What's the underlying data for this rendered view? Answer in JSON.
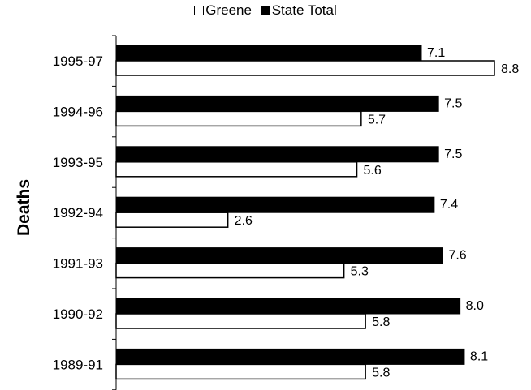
{
  "chart_data": {
    "type": "bar",
    "orientation": "horizontal",
    "categories": [
      "1995-97",
      "1994-96",
      "1993-95",
      "1992-94",
      "1991-93",
      "1990-92",
      "1989-91"
    ],
    "series": [
      {
        "name": "State Total",
        "values": [
          7.1,
          7.5,
          7.5,
          7.4,
          7.6,
          8.0,
          8.1
        ],
        "labels": [
          "7.1",
          "7.5",
          "7.5",
          "7.4",
          "7.6",
          "8.0",
          "8.1"
        ],
        "color": "#000000"
      },
      {
        "name": "Greene",
        "values": [
          8.8,
          5.7,
          5.6,
          2.6,
          5.3,
          5.8,
          5.8
        ],
        "labels": [
          "8.8",
          "5.7",
          "5.6",
          "2.6",
          "5.3",
          "5.8",
          "5.8"
        ],
        "color": "#ffffff"
      }
    ],
    "ylabel": "Deaths",
    "xlabel": "",
    "xlim": [
      0,
      8.8
    ],
    "grid": false,
    "legend_position": "top",
    "legend_order": [
      "Greene",
      "State Total"
    ]
  },
  "legend": {
    "greene_label": "Greene",
    "state_label": "State Total"
  }
}
